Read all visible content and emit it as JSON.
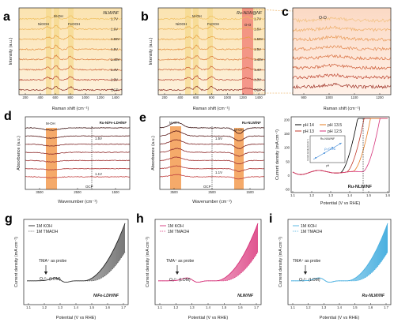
{
  "panels": {
    "a": {
      "letter": "a",
      "title": "NLW/NF",
      "xlabel": "Raman shift (cm⁻¹)",
      "ylabel": "Intensity (a.u.)",
      "xticks": [
        "200",
        "400",
        "600",
        "800",
        "1000",
        "1200",
        "1400"
      ],
      "band_labels": [
        "NiOOH",
        "M-OH",
        "FeOOH"
      ],
      "potentials": [
        "1.7V",
        "1.6V",
        "1.55V",
        "1.5V",
        "1.45V",
        "1.4V",
        "1.3V",
        "OCP"
      ]
    },
    "b": {
      "letter": "b",
      "title": "Ru-NLW@NF",
      "xlabel": "Raman shift (cm⁻¹)",
      "ylabel": "Intensity (a.u.)",
      "xticks": [
        "200",
        "400",
        "600",
        "800",
        "1000",
        "1200",
        "1400"
      ],
      "band_labels": [
        "NiOOH",
        "M-OH",
        "FeOOH",
        "O-O"
      ],
      "potentials": [
        "1.7V",
        "1.6V",
        "1.55V",
        "1.5V",
        "1.45V",
        "1.4V",
        "1.3V",
        "OCP"
      ]
    },
    "c": {
      "letter": "c",
      "label": "O-O",
      "xlabel": "Raman shift (cm⁻¹)",
      "xticks": [
        "900",
        "1000",
        "1100",
        "1200"
      ]
    },
    "d": {
      "letter": "d",
      "title": "Ru-NiFe-LDH/NF",
      "band_label": "M-OH",
      "xlabel": "Wavenumber (cm⁻¹)",
      "ylabel": "Absorbance (a.u.)",
      "xticks": [
        "3500",
        "2500",
        "1500"
      ],
      "marks": [
        "1.5V",
        "OCP",
        "1.1V"
      ]
    },
    "e": {
      "letter": "e",
      "title": "Ru-NLW/NF",
      "band_labels": [
        "M-OH",
        "M-OH"
      ],
      "xlabel": "Wavenumber (cm⁻¹)",
      "ylabel": "Absorbance (a.u.)",
      "xticks": [
        "3500",
        "2500",
        "1500"
      ],
      "marks": [
        "1.5V",
        "OCP",
        "1.1V"
      ]
    },
    "f": {
      "letter": "f",
      "xlabel": "Potential (V vs RHE)",
      "ylabel": "Current density (mA cm⁻²)",
      "xticks": [
        "1.1",
        "1.2",
        "1.3",
        "1.4",
        "1.5",
        "1.6"
      ],
      "yticks": [
        "200",
        "150",
        "100",
        "50",
        "0",
        "-50"
      ],
      "legend": [
        "pH 14",
        "pH 13",
        "pH 13.5",
        "pH 12.5"
      ],
      "inset_title": "Ru-NLW/NF",
      "inset_text": "ρ=0.91",
      "inset_xlabel": "pH",
      "inset_ylabel": "Current density (mA cm⁻²)",
      "sample": "Ru-NLW/NF"
    },
    "g": {
      "letter": "g",
      "legend": [
        "1M KOH",
        "1M TMAOH"
      ],
      "probe": "TMA⁺ as probe",
      "species": "O₂²⁻ (LOM)",
      "sample": "NiFe-LDH/NF",
      "xlabel": "Potential (V vs RHE)",
      "ylabel": "Current density (mA cm⁻²)",
      "xticks": [
        "1.1",
        "1.2",
        "1.3",
        "1.4",
        "1.5",
        "1.6",
        "1.7"
      ]
    },
    "h": {
      "letter": "h",
      "legend": [
        "1M KOH",
        "1M TMAOH"
      ],
      "probe": "TMA⁺ as probe",
      "species": "O₂²⁻ (LOM)",
      "sample": "NLW/NF",
      "xlabel": "Potential (V vs RHE)",
      "ylabel": "Current density (mA cm⁻²)",
      "xticks": [
        "1.1",
        "1.2",
        "1.3",
        "1.4",
        "1.5",
        "1.6",
        "1.7"
      ]
    },
    "i": {
      "letter": "i",
      "legend": [
        "1M KOH",
        "1M TMAOH"
      ],
      "probe": "TMA⁺ as probe",
      "species": "O₂²⁻ (LOM)",
      "sample": "Ru-NLW/NF",
      "xlabel": "Potential (V vs RHE)",
      "ylabel": "Current density (mA cm⁻²)",
      "xticks": [
        "1.1",
        "1.2",
        "1.3",
        "1.4",
        "1.5",
        "1.6",
        "1.7"
      ]
    }
  },
  "colors": {
    "raman_series": [
      "#f0c060",
      "#ebb050",
      "#e8a040",
      "#e49040",
      "#d97a3a",
      "#cc6035",
      "#b84532",
      "#8a2a20"
    ],
    "ir_series": [
      "#3a1010",
      "#5a1a1a",
      "#7a2020",
      "#8e2a2a",
      "#a03030",
      "#b03a3a",
      "#c24040"
    ],
    "band_yellow": "#f5d98a",
    "band_red": "#f07a70",
    "band_orange": "#f4a15a",
    "ph_colors": [
      "#000000",
      "#c0392b",
      "#e67e22",
      "#d6337a"
    ],
    "g_main": "#222222",
    "h_main": "#d6337a",
    "i_main": "#4ab0e0"
  },
  "chart_data": [
    {
      "panel": "a",
      "type": "line",
      "xlabel": "Raman shift (cm⁻¹)",
      "ylabel": "Intensity (a.u.)",
      "series_names": [
        "1.7V",
        "1.6V",
        "1.55V",
        "1.5V",
        "1.45V",
        "1.4V",
        "1.3V",
        "OCP"
      ],
      "xlim": [
        100,
        1400
      ],
      "bands": [
        470,
        550,
        680
      ]
    },
    {
      "panel": "b",
      "type": "line",
      "xlabel": "Raman shift (cm⁻¹)",
      "ylabel": "Intensity (a.u.)",
      "series_names": [
        "1.7V",
        "1.6V",
        "1.55V",
        "1.5V",
        "1.45V",
        "1.4V",
        "1.3V",
        "OCP"
      ],
      "xlim": [
        100,
        1400
      ],
      "bands": [
        470,
        550,
        680,
        1060
      ]
    },
    {
      "panel": "c",
      "type": "line",
      "xlabel": "Raman shift (cm⁻¹)",
      "xlim": [
        900,
        1250
      ]
    },
    {
      "panel": "d",
      "type": "line",
      "xlabel": "Wavenumber (cm⁻¹)",
      "ylabel": "Absorbance (a.u.)",
      "xlim": [
        4000,
        1000
      ],
      "bands": [
        3100
      ]
    },
    {
      "panel": "e",
      "type": "line",
      "xlabel": "Wavenumber (cm⁻¹)",
      "ylabel": "Absorbance (a.u.)",
      "xlim": [
        4000,
        1000
      ],
      "bands": [
        3100,
        1200
      ]
    },
    {
      "panel": "f",
      "type": "line",
      "xlabel": "Potential (V vs RHE)",
      "ylabel": "Current density (mA cm⁻²)",
      "series": [
        {
          "name": "pH 14"
        },
        {
          "name": "pH 13"
        },
        {
          "name": "pH 13.5"
        },
        {
          "name": "pH 12.5"
        }
      ],
      "xlim": [
        1.1,
        1.6
      ],
      "ylim": [
        -50,
        200
      ]
    },
    {
      "panel": "g",
      "type": "line",
      "xlabel": "Potential (V vs RHE)",
      "ylabel": "Current density (mA cm⁻²)",
      "series": [
        {
          "name": "1M KOH"
        },
        {
          "name": "1M TMAOH"
        }
      ],
      "xlim": [
        1.1,
        1.7
      ]
    },
    {
      "panel": "h",
      "type": "line",
      "xlabel": "Potential (V vs RHE)",
      "ylabel": "Current density (mA cm⁻²)",
      "series": [
        {
          "name": "1M KOH"
        },
        {
          "name": "1M TMAOH"
        }
      ],
      "xlim": [
        1.1,
        1.7
      ]
    },
    {
      "panel": "i",
      "type": "line",
      "xlabel": "Potential (V vs RHE)",
      "ylabel": "Current density (mA cm⁻²)",
      "series": [
        {
          "name": "1M KOH"
        },
        {
          "name": "1M TMAOH"
        }
      ],
      "xlim": [
        1.1,
        1.7
      ]
    }
  ]
}
